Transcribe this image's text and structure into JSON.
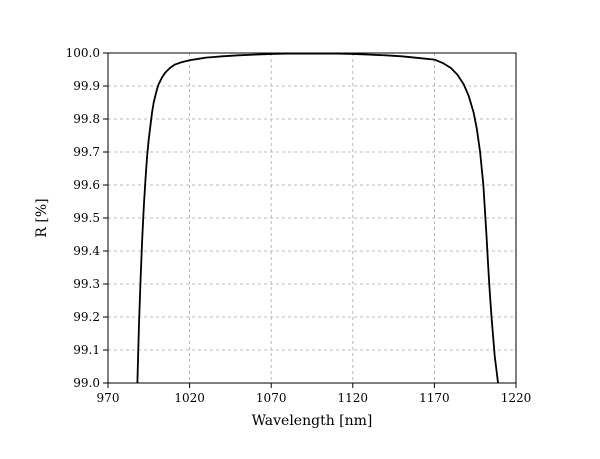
{
  "chart_data": {
    "type": "line",
    "title": "",
    "xlabel": "Wavelength [nm]",
    "ylabel": "R [%]",
    "xlim": [
      970,
      1220
    ],
    "ylim": [
      99.0,
      100.0
    ],
    "x_ticks": [
      "970",
      "1020",
      "1070",
      "1120",
      "1170",
      "1220"
    ],
    "y_ticks": [
      "99.0",
      "99.1",
      "99.2",
      "99.3",
      "99.4",
      "99.5",
      "99.6",
      "99.7",
      "99.8",
      "99.9",
      "100.0"
    ],
    "grid": true,
    "series": [
      {
        "x": [
          988,
          989,
          990,
          991,
          992,
          993,
          994,
          995,
          996,
          997,
          998,
          999,
          1000,
          1001,
          1002,
          1003,
          1005,
          1008,
          1011,
          1015,
          1020,
          1025,
          1030,
          1035,
          1040,
          1050,
          1060,
          1070,
          1080,
          1090,
          1100,
          1110,
          1120,
          1130,
          1140,
          1150,
          1160,
          1170,
          1175,
          1180,
          1184,
          1188,
          1191,
          1194,
          1196,
          1198,
          1200,
          1201,
          1202,
          1203,
          1204,
          1205,
          1206,
          1207,
          1208,
          1209
        ],
        "y": [
          99.0,
          99.18,
          99.32,
          99.44,
          99.54,
          99.62,
          99.69,
          99.74,
          99.78,
          99.82,
          99.85,
          99.87,
          99.89,
          99.905,
          99.915,
          99.925,
          99.94,
          99.955,
          99.965,
          99.972,
          99.978,
          99.982,
          99.986,
          99.988,
          99.99,
          99.993,
          99.995,
          99.997,
          99.998,
          99.998,
          99.998,
          99.998,
          99.997,
          99.995,
          99.993,
          99.99,
          99.985,
          99.98,
          99.97,
          99.955,
          99.935,
          99.905,
          99.87,
          99.82,
          99.77,
          99.7,
          99.6,
          99.52,
          99.44,
          99.35,
          99.27,
          99.2,
          99.14,
          99.08,
          99.04,
          99.0
        ]
      }
    ]
  }
}
